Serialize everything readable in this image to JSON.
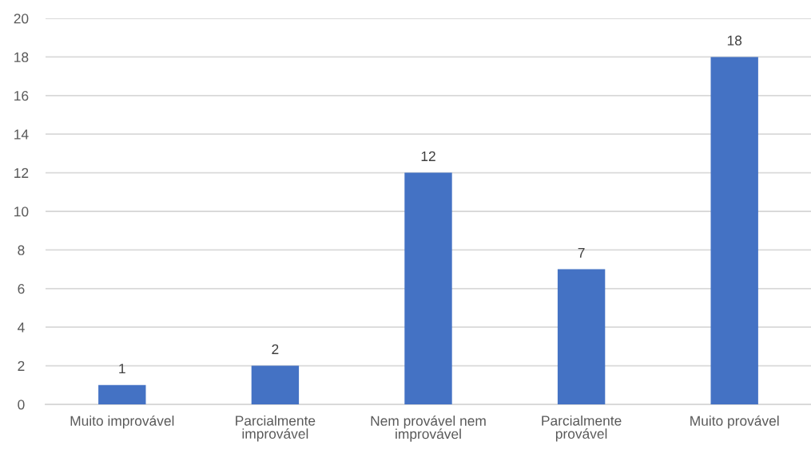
{
  "chart_data": {
    "type": "bar",
    "categories": [
      "Muito improvável",
      "Parcialmente improvável",
      "Nem provável nem improvável",
      "Parcialmente provável",
      "Muito provável"
    ],
    "values": [
      1,
      2,
      12,
      7,
      18
    ],
    "color": "#4472c4",
    "ylim": [
      0,
      20
    ],
    "yticks": [
      0,
      2,
      4,
      6,
      8,
      10,
      12,
      14,
      16,
      18,
      20
    ],
    "grid": "y",
    "data_labels": true,
    "legend": false
  }
}
